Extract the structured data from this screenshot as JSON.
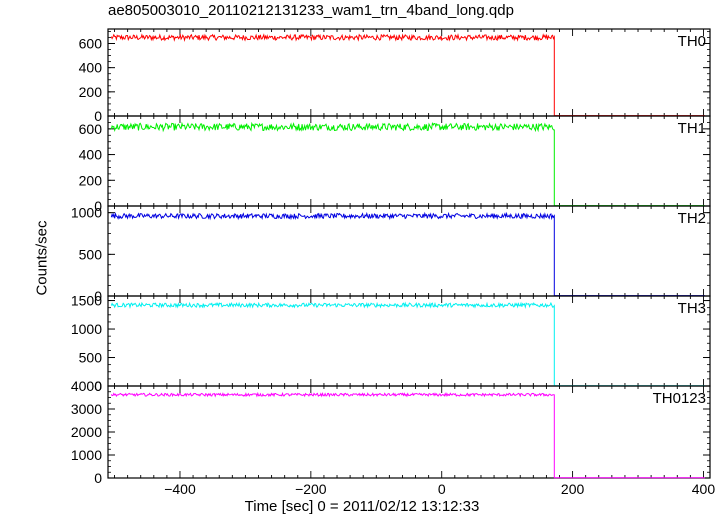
{
  "title": "ae805003010_20110212131233_wam1_trn_4band_long.qdp",
  "xlabel": "Time [sec] 0 = 2011/02/12 13:12:33",
  "ylabel": "Counts/sec",
  "chart_data": [
    {
      "type": "line",
      "name": "TH0",
      "color": "#ff0000",
      "xlim": [
        -510,
        410
      ],
      "ylim": [
        0,
        720
      ],
      "yticks": [
        0,
        200,
        400,
        600
      ],
      "series": [
        {
          "name": "TH0",
          "x_start": -505,
          "x_end": 172,
          "mean": 650,
          "noise": 22,
          "after_drop": 3
        }
      ]
    },
    {
      "type": "line",
      "name": "TH1",
      "color": "#00ee00",
      "xlim": [
        -510,
        410
      ],
      "ylim": [
        0,
        700
      ],
      "yticks": [
        0,
        200,
        400,
        600
      ],
      "series": [
        {
          "name": "TH1",
          "x_start": -505,
          "x_end": 172,
          "mean": 615,
          "noise": 28,
          "after_drop": 3
        }
      ]
    },
    {
      "type": "line",
      "name": "TH2",
      "color": "#0000e0",
      "xlim": [
        -510,
        410
      ],
      "ylim": [
        0,
        1080
      ],
      "yticks": [
        0,
        500,
        1000
      ],
      "series": [
        {
          "name": "TH2",
          "x_start": -505,
          "x_end": 172,
          "mean": 960,
          "noise": 30,
          "after_drop": 5
        }
      ]
    },
    {
      "type": "line",
      "name": "TH3",
      "color": "#00f0f0",
      "xlim": [
        -510,
        410
      ],
      "ylim": [
        0,
        1580
      ],
      "yticks": [
        0,
        500,
        1000,
        1500
      ],
      "series": [
        {
          "name": "TH3",
          "x_start": -505,
          "x_end": 172,
          "mean": 1420,
          "noise": 35,
          "after_drop": 5
        }
      ]
    },
    {
      "type": "line",
      "name": "TH0123",
      "color": "#ff00ff",
      "xlim": [
        -510,
        410
      ],
      "ylim": [
        0,
        4000
      ],
      "yticks": [
        0,
        1000,
        2000,
        3000,
        4000
      ],
      "series": [
        {
          "name": "TH0123",
          "x_start": -505,
          "x_end": 172,
          "mean": 3620,
          "noise": 60,
          "after_drop": 15
        }
      ]
    }
  ],
  "xticks": [
    -400,
    -200,
    0,
    200,
    400
  ]
}
